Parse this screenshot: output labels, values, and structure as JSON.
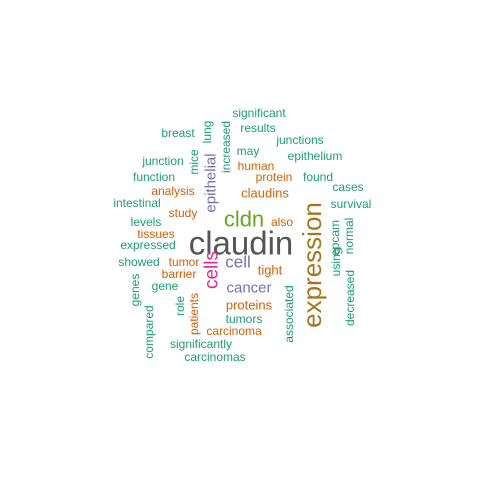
{
  "palette": {
    "teal": "#1b9e77",
    "orange": "#d95f02",
    "purple": "#7570b3",
    "magenta": "#e7298a",
    "green": "#66a61e",
    "brown": "#a6761d",
    "gray": "#555555"
  },
  "words": [
    {
      "text": "claudin",
      "color": "gray"
    },
    {
      "text": "expression",
      "color": "brown"
    },
    {
      "text": "cldn",
      "color": "green"
    },
    {
      "text": "cells",
      "color": "magenta"
    },
    {
      "text": "cell",
      "color": "purple"
    },
    {
      "text": "epithelial",
      "color": "purple"
    },
    {
      "text": "cancer",
      "color": "purple"
    },
    {
      "text": "tight",
      "color": "orange"
    },
    {
      "text": "claudins",
      "color": "orange"
    },
    {
      "text": "proteins",
      "color": "orange"
    },
    {
      "text": "significant",
      "color": "teal"
    },
    {
      "text": "results",
      "color": "teal"
    },
    {
      "text": "breast",
      "color": "teal"
    },
    {
      "text": "lung",
      "color": "teal"
    },
    {
      "text": "increased",
      "color": "teal"
    },
    {
      "text": "junctions",
      "color": "teal"
    },
    {
      "text": "may",
      "color": "teal"
    },
    {
      "text": "epithelium",
      "color": "teal"
    },
    {
      "text": "junction",
      "color": "teal"
    },
    {
      "text": "mice",
      "color": "teal"
    },
    {
      "text": "human",
      "color": "orange"
    },
    {
      "text": "function",
      "color": "teal"
    },
    {
      "text": "protein",
      "color": "orange"
    },
    {
      "text": "found",
      "color": "teal"
    },
    {
      "text": "analysis",
      "color": "orange"
    },
    {
      "text": "cases",
      "color": "teal"
    },
    {
      "text": "intestinal",
      "color": "teal"
    },
    {
      "text": "survival",
      "color": "teal"
    },
    {
      "text": "study",
      "color": "orange"
    },
    {
      "text": "levels",
      "color": "teal"
    },
    {
      "text": "also",
      "color": "orange"
    },
    {
      "text": "tissues",
      "color": "orange"
    },
    {
      "text": "expressed",
      "color": "teal"
    },
    {
      "text": "epcam",
      "color": "teal"
    },
    {
      "text": "normal",
      "color": "teal"
    },
    {
      "text": "showed",
      "color": "teal"
    },
    {
      "text": "tumor",
      "color": "orange"
    },
    {
      "text": "using",
      "color": "teal"
    },
    {
      "text": "barrier",
      "color": "orange"
    },
    {
      "text": "genes",
      "color": "teal"
    },
    {
      "text": "gene",
      "color": "teal"
    },
    {
      "text": "decreased",
      "color": "teal"
    },
    {
      "text": "associated",
      "color": "teal"
    },
    {
      "text": "role",
      "color": "teal"
    },
    {
      "text": "compared",
      "color": "teal"
    },
    {
      "text": "patients",
      "color": "orange"
    },
    {
      "text": "tumors",
      "color": "teal"
    },
    {
      "text": "carcinoma",
      "color": "orange"
    },
    {
      "text": "significantly",
      "color": "teal"
    },
    {
      "text": "carcinomas",
      "color": "teal"
    }
  ]
}
